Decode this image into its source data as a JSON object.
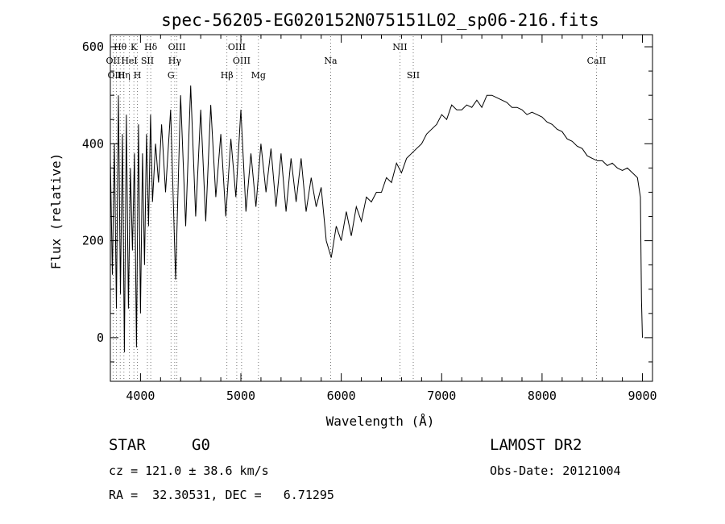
{
  "chart_data": {
    "type": "line",
    "title": "spec-56205-EG020152N075151L02_sp06-216.fits",
    "xlabel": "Wavelength (Å)",
    "ylabel": "Flux (relative)",
    "xlim": [
      3700,
      9100
    ],
    "ylim": [
      -90,
      625
    ],
    "xticks": [
      4000,
      5000,
      6000,
      7000,
      8000,
      9000
    ],
    "yticks": [
      0,
      200,
      400,
      600
    ],
    "grid": false,
    "series": [
      {
        "x": [
          3700,
          3720,
          3740,
          3760,
          3780,
          3800,
          3820,
          3840,
          3860,
          3880,
          3900,
          3920,
          3940,
          3960,
          3980,
          4000,
          4020,
          4040,
          4060,
          4080,
          4100,
          4120,
          4150,
          4180,
          4210,
          4250,
          4300,
          4350,
          4400,
          4450,
          4500,
          4550,
          4600,
          4650,
          4700,
          4750,
          4800,
          4850,
          4900,
          4950,
          5000,
          5050,
          5100,
          5150,
          5200,
          5250,
          5300,
          5350,
          5400,
          5450,
          5500,
          5550,
          5600,
          5650,
          5700,
          5750,
          5800,
          5850,
          5900,
          5950,
          6000,
          6050,
          6100,
          6150,
          6200,
          6250,
          6300,
          6350,
          6400,
          6450,
          6500,
          6550,
          6600,
          6650,
          6700,
          6750,
          6800,
          6850,
          6900,
          6950,
          7000,
          7050,
          7100,
          7150,
          7200,
          7250,
          7300,
          7350,
          7400,
          7450,
          7500,
          7550,
          7600,
          7650,
          7700,
          7750,
          7800,
          7850,
          7900,
          7950,
          8000,
          8050,
          8100,
          8150,
          8200,
          8250,
          8300,
          8350,
          8400,
          8450,
          8500,
          8550,
          8600,
          8650,
          8700,
          8750,
          8800,
          8850,
          8900,
          8950,
          8980,
          8990,
          9000
        ],
        "y": [
          370,
          130,
          400,
          60,
          500,
          90,
          420,
          -30,
          460,
          60,
          350,
          180,
          380,
          -20,
          440,
          50,
          380,
          150,
          420,
          230,
          460,
          280,
          400,
          320,
          440,
          300,
          470,
          120,
          500,
          230,
          520,
          250,
          470,
          240,
          480,
          290,
          420,
          250,
          410,
          290,
          470,
          260,
          380,
          270,
          400,
          300,
          390,
          270,
          380,
          260,
          370,
          280,
          370,
          260,
          330,
          270,
          310,
          200,
          165,
          230,
          200,
          260,
          210,
          270,
          240,
          290,
          280,
          300,
          300,
          330,
          320,
          360,
          340,
          370,
          380,
          390,
          400,
          420,
          430,
          440,
          460,
          450,
          480,
          470,
          470,
          480,
          475,
          490,
          475,
          500,
          500,
          495,
          490,
          485,
          475,
          475,
          470,
          460,
          465,
          460,
          455,
          445,
          440,
          430,
          425,
          410,
          405,
          395,
          390,
          375,
          370,
          365,
          365,
          355,
          360,
          350,
          345,
          350,
          340,
          330,
          290,
          80,
          0
        ]
      }
    ],
    "spectral_lines": [
      {
        "label": "Hθ",
        "x": 3798,
        "row": 1
      },
      {
        "label": "K",
        "x": 3934,
        "row": 1
      },
      {
        "label": "Hδ",
        "x": 4102,
        "row": 1
      },
      {
        "label": "OIII",
        "x": 4363,
        "row": 1
      },
      {
        "label": "OIII",
        "x": 4959,
        "row": 1
      },
      {
        "label": "NII",
        "x": 6584,
        "row": 1
      },
      {
        "label": "OII",
        "x": 3727,
        "row": 2
      },
      {
        "label": "HeI",
        "x": 3889,
        "row": 2
      },
      {
        "label": "SII",
        "x": 4069,
        "row": 2
      },
      {
        "label": "Hγ",
        "x": 4341,
        "row": 2
      },
      {
        "label": "OIII",
        "x": 5007,
        "row": 2
      },
      {
        "label": "Na",
        "x": 5894,
        "row": 2
      },
      {
        "label": "CaII",
        "x": 8542,
        "row": 2
      },
      {
        "label": "OIII",
        "x": 3760,
        "row": 3
      },
      {
        "label": "Hη",
        "x": 3835,
        "row": 3
      },
      {
        "label": "H",
        "x": 3969,
        "row": 3
      },
      {
        "label": "G",
        "x": 4304,
        "row": 3
      },
      {
        "label": "Hβ",
        "x": 4861,
        "row": 3
      },
      {
        "label": "Mg",
        "x": 5175,
        "row": 3
      },
      {
        "label": "SII",
        "x": 6717,
        "row": 3
      }
    ]
  },
  "info": {
    "class": "STAR",
    "subclass": "G0",
    "survey": "LAMOST DR2",
    "cz": "cz = 121.0 ± 38.6 km/s",
    "obs_date": "Obs-Date: 20121004",
    "coords": "RA =  32.30531, DEC =   6.71295"
  }
}
